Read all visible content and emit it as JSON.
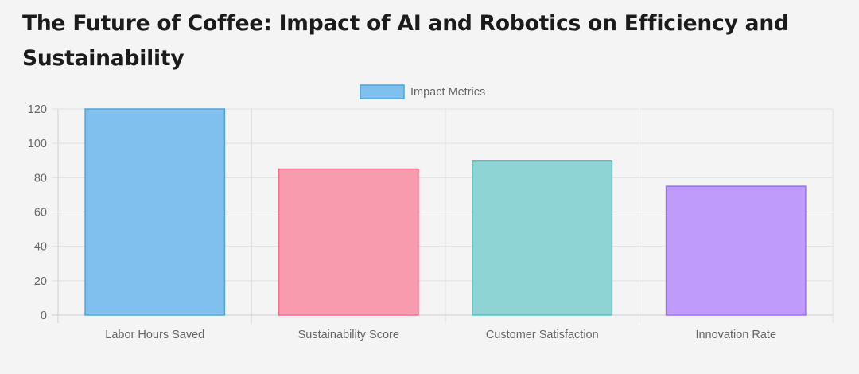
{
  "page": {
    "title": "The Future of Coffee: Impact of AI and Robotics on Efficiency and Sustainability"
  },
  "chart_data": {
    "type": "bar",
    "title": "",
    "xlabel": "",
    "ylabel": "",
    "categories": [
      "Labor Hours Saved",
      "Sustainability Score",
      "Customer Satisfaction",
      "Innovation Rate"
    ],
    "series": [
      {
        "name": "Impact Metrics",
        "values": [
          120,
          85,
          90,
          75
        ],
        "fill_colors": [
          "#7fc0ee",
          "#f99bae",
          "#8fd4d4",
          "#bf9bfc"
        ],
        "border_colors": [
          "#4fa3dd",
          "#f06e8c",
          "#5cc0c0",
          "#9b6ef5"
        ]
      }
    ],
    "ylim": [
      0,
      120
    ],
    "yticks": [
      0,
      20,
      40,
      60,
      80,
      100,
      120
    ],
    "grid": true,
    "legend": {
      "position": "top-center",
      "swatch_fill": "#7fc0ee",
      "swatch_border": "#4fa3dd"
    }
  }
}
